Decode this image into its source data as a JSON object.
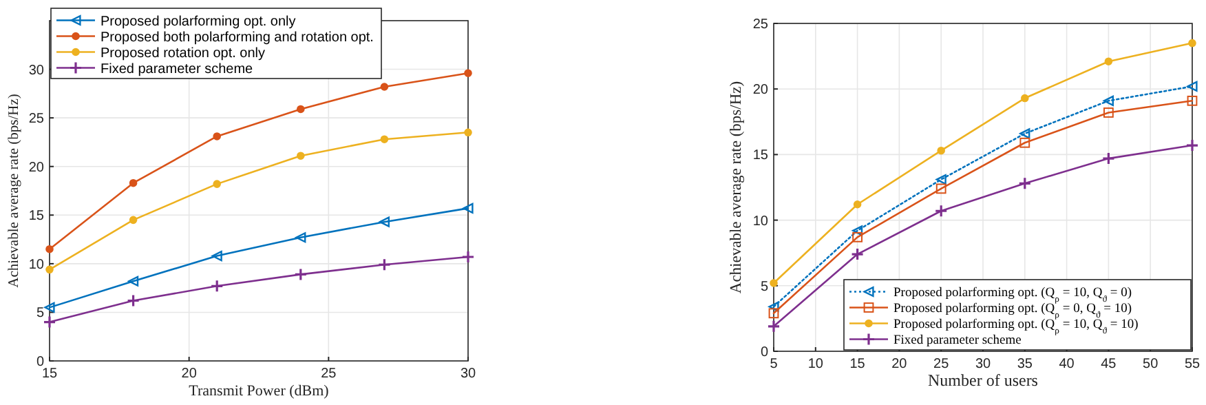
{
  "chart_data": [
    {
      "type": "line",
      "xlabel": "Transmit Power (dBm)",
      "ylabel": "Achievable average rate (bps/Hz)",
      "x": [
        15,
        18,
        21,
        24,
        27,
        30
      ],
      "xlim": [
        15,
        30
      ],
      "xticks": [
        15,
        20,
        25,
        30
      ],
      "ylim": [
        0,
        35
      ],
      "yticks": [
        0,
        5,
        10,
        15,
        20,
        25,
        30
      ],
      "grid": true,
      "legend": "top left",
      "series": [
        {
          "name": "Proposed polarforming opt. only",
          "color": "#0072bd",
          "marker": "triangle",
          "values": [
            5.5,
            8.2,
            10.8,
            12.7,
            14.3,
            15.7
          ]
        },
        {
          "name": "Proposed both polarforming and rotation opt.",
          "color": "#d95319",
          "marker": "circle",
          "values": [
            11.5,
            18.3,
            23.1,
            25.9,
            28.2,
            29.6
          ]
        },
        {
          "name": "Proposed rotation opt. only",
          "color": "#edb120",
          "marker": "circle",
          "values": [
            9.4,
            14.5,
            18.2,
            21.1,
            22.8,
            23.5
          ]
        },
        {
          "name": "Fixed parameter scheme",
          "color": "#7e2f8e",
          "marker": "cross",
          "values": [
            4.0,
            6.2,
            7.7,
            8.9,
            9.9,
            10.7
          ]
        }
      ]
    },
    {
      "type": "line",
      "xlabel": "Number of users",
      "ylabel": "Achievable average rate (bps/Hz)",
      "x": [
        5,
        15,
        25,
        35,
        45,
        55
      ],
      "xlim": [
        5,
        55
      ],
      "xticks": [
        5,
        10,
        15,
        20,
        25,
        30,
        35,
        40,
        45,
        50,
        55
      ],
      "ylim": [
        0,
        25
      ],
      "yticks": [
        0,
        5,
        10,
        15,
        20,
        25
      ],
      "grid": true,
      "legend": "bottom right",
      "series": [
        {
          "name": "Proposed polarforming opt. (Q$_{ρ}$ = 10, Q$_{ϑ}$ = 0)",
          "color": "#0072bd",
          "marker": "triangle",
          "line_style": "dotted",
          "values": [
            3.4,
            9.2,
            13.1,
            16.6,
            19.1,
            20.2
          ]
        },
        {
          "name": "Proposed polarforming opt. (Q$_{ρ}$ = 0, Q$_{ϑ}$ = 10)",
          "color": "#d95319",
          "marker": "square",
          "values": [
            2.9,
            8.7,
            12.4,
            15.9,
            18.2,
            19.1
          ]
        },
        {
          "name": "Proposed polarforming opt. (Q$_{ρ}$ = 10, Q$_{ϑ}$ = 10)",
          "color": "#edb120",
          "marker": "circle",
          "values": [
            5.2,
            11.2,
            15.3,
            19.3,
            22.1,
            23.5
          ]
        },
        {
          "name": "Fixed parameter scheme",
          "color": "#7e2f8e",
          "marker": "cross",
          "values": [
            1.9,
            7.4,
            10.7,
            12.8,
            14.7,
            15.7
          ]
        }
      ]
    }
  ]
}
